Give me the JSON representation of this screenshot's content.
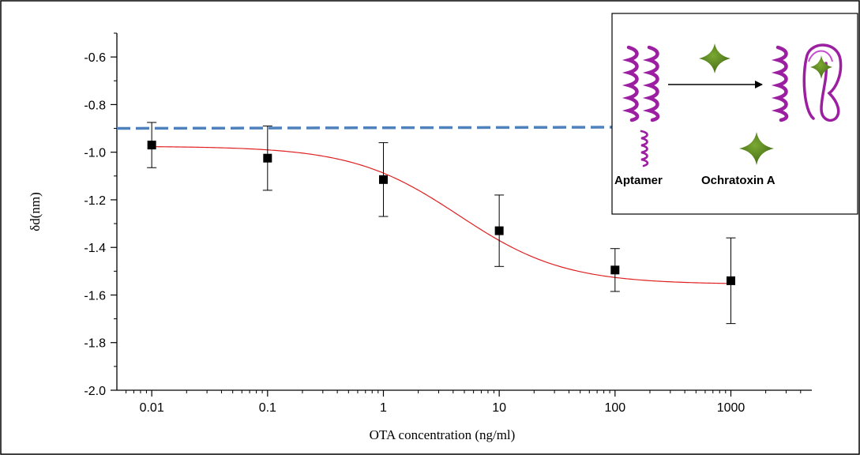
{
  "chart_data": {
    "type": "scatter",
    "x_scale": "log",
    "xlabel": "OTA concentration (ng/ml)",
    "ylabel": "δd(nm)",
    "xlim": [
      0.005,
      5000
    ],
    "ylim": [
      -2.0,
      -0.5
    ],
    "x_ticks": [
      {
        "value": 0.01,
        "label": "0.01"
      },
      {
        "value": 0.1,
        "label": "0.1"
      },
      {
        "value": 1,
        "label": "1"
      },
      {
        "value": 10,
        "label": "10"
      },
      {
        "value": 100,
        "label": "100"
      },
      {
        "value": 1000,
        "label": "1000"
      }
    ],
    "y_ticks": [
      {
        "value": -0.6,
        "label": "-0.6"
      },
      {
        "value": -0.8,
        "label": "-0.8"
      },
      {
        "value": -1.0,
        "label": "-1.0"
      },
      {
        "value": -1.2,
        "label": "-1.2"
      },
      {
        "value": -1.4,
        "label": "-1.4"
      },
      {
        "value": -1.6,
        "label": "-1.6"
      },
      {
        "value": -1.8,
        "label": "-1.8"
      },
      {
        "value": -2.0,
        "label": "-2.0"
      }
    ],
    "points": [
      {
        "x": 0.01,
        "y": -0.97,
        "err_low": -1.065,
        "err_high": -0.875
      },
      {
        "x": 0.1,
        "y": -1.025,
        "err_low": -1.16,
        "err_high": -0.89
      },
      {
        "x": 1,
        "y": -1.115,
        "err_low": -1.27,
        "err_high": -0.96
      },
      {
        "x": 10,
        "y": -1.33,
        "err_low": -1.48,
        "err_high": -1.18
      },
      {
        "x": 100,
        "y": -1.495,
        "err_low": -1.585,
        "err_high": -1.405
      },
      {
        "x": 1000,
        "y": -1.54,
        "err_low": -1.72,
        "err_high": -1.36
      }
    ],
    "fit": {
      "model": "sigmoid",
      "top": -0.975,
      "bottom": -1.555,
      "log_x0": 0.65,
      "slope": 0.95,
      "color": "#e02020"
    },
    "threshold": {
      "y": -0.9,
      "color": "#4f81bd",
      "style": "dashed"
    },
    "marker_color": "#000000",
    "grid": false
  },
  "inset": {
    "aptamer_label": "Aptamer",
    "ochratoxin_label": "Ochratoxin A",
    "colors": {
      "aptamer": "#9b1fa0",
      "ochratoxin": "#4c7a1c"
    }
  }
}
